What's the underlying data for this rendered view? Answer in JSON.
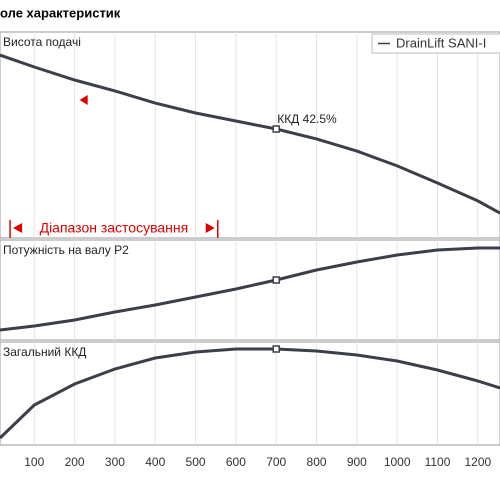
{
  "chart_data": {
    "type": "line",
    "title": "оле характеристик",
    "legend_label": "DrainLift SANI-I",
    "x": [
      15,
      100,
      200,
      300,
      400,
      500,
      600,
      700,
      800,
      900,
      1000,
      1100,
      1200,
      1255
    ],
    "xlim": [
      15,
      1255
    ],
    "xticks": [
      100,
      200,
      300,
      400,
      500,
      600,
      700,
      800,
      900,
      1000,
      1100,
      1200
    ],
    "grid": true,
    "operating_point_x": 700,
    "annotation": "ККД  42.5%",
    "lower_limit_x": 225,
    "application_range": {
      "label": "Діапазон застосування",
      "x": [
        40,
        555
      ],
      "color": "#e00000"
    },
    "series": [
      {
        "name": "Висота подачі",
        "color": "#3b3f4a",
        "ylim": [
          0,
          100
        ],
        "values": [
          88.8,
          83.0,
          76.7,
          71.4,
          65.5,
          60.7,
          56.8,
          52.9,
          48.1,
          42.2,
          35.0,
          26.7,
          18.0,
          12.1
        ]
      },
      {
        "name": "Потужність на валу P2",
        "color": "#3b3f4a",
        "ylim": [
          0,
          100
        ],
        "values": [
          10,
          14,
          20,
          28,
          35,
          43,
          51,
          60,
          70,
          78,
          85,
          90,
          92,
          92
        ]
      },
      {
        "name": "Загальний ККД",
        "color": "#3b3f4a",
        "ylim": [
          0,
          100
        ],
        "values": [
          6.8,
          38.8,
          59.2,
          73.8,
          84.5,
          90.3,
          93.2,
          93.2,
          91.3,
          87.4,
          81.6,
          72.8,
          62.1,
          55.3
        ]
      }
    ]
  }
}
